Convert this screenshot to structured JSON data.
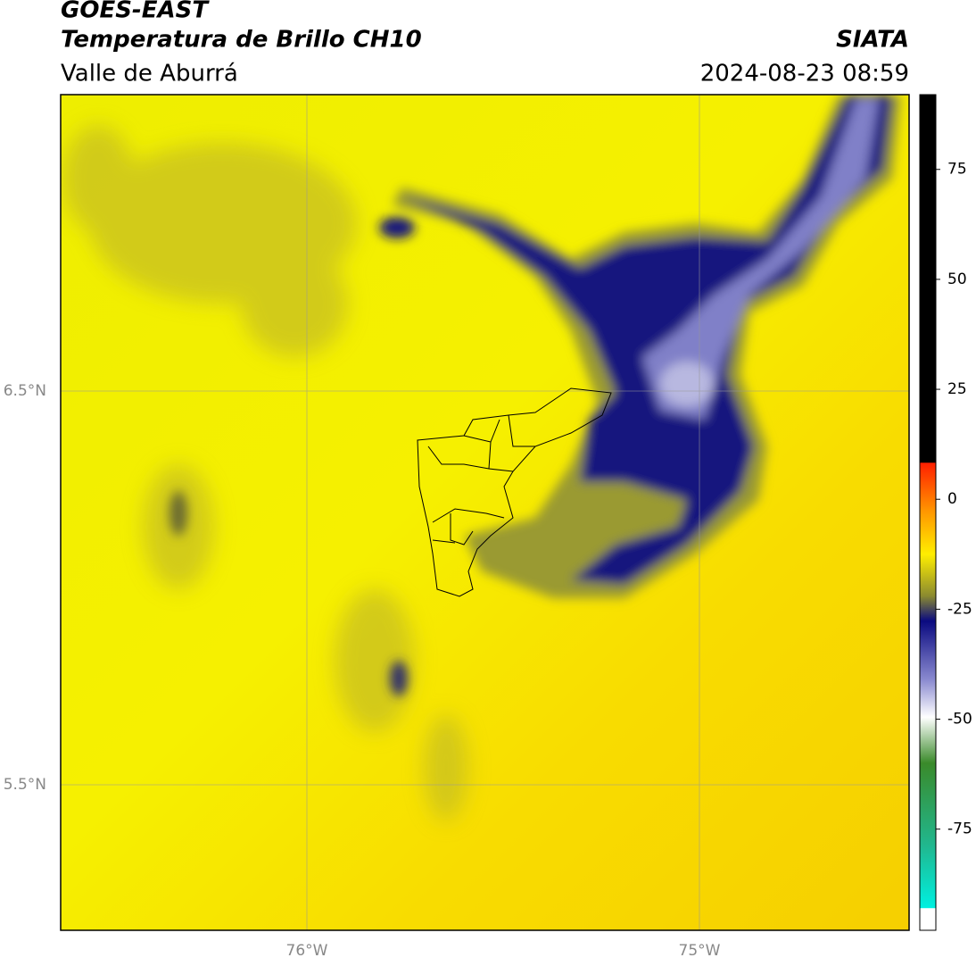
{
  "header": {
    "title": "GOES-EAST",
    "subtitle": "Temperatura de Brillo CH10",
    "region": "Valle de Aburrá",
    "source": "SIATA",
    "datetime": "2024-08-23 08:59"
  },
  "map": {
    "lat_labels": [
      "6.5°N",
      "5.5°N"
    ],
    "lon_labels": [
      "76°W",
      "75°W"
    ]
  },
  "colorbar": {
    "range": [
      -98,
      92
    ],
    "ticks": [
      75,
      50,
      25,
      0,
      -25,
      -50,
      -75
    ]
  }
}
